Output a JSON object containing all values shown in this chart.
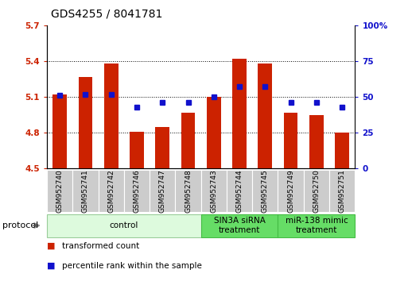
{
  "title": "GDS4255 / 8041781",
  "categories": [
    "GSM952740",
    "GSM952741",
    "GSM952742",
    "GSM952746",
    "GSM952747",
    "GSM952748",
    "GSM952743",
    "GSM952744",
    "GSM952745",
    "GSM952749",
    "GSM952750",
    "GSM952751"
  ],
  "bar_values": [
    5.12,
    5.27,
    5.38,
    4.81,
    4.85,
    4.97,
    5.1,
    5.42,
    5.38,
    4.97,
    4.95,
    4.8
  ],
  "percentile_values": [
    51,
    52,
    52,
    43,
    46,
    46,
    50,
    57,
    57,
    46,
    46,
    43
  ],
  "bar_color": "#cc2200",
  "percentile_color": "#1111cc",
  "ylim_left": [
    4.5,
    5.7
  ],
  "ylim_right": [
    0,
    100
  ],
  "yticks_left": [
    4.5,
    4.8,
    5.1,
    5.4,
    5.7
  ],
  "ytick_labels_left": [
    "4.5",
    "4.8",
    "5.1",
    "5.4",
    "5.7"
  ],
  "yticks_right": [
    0,
    25,
    50,
    75,
    100
  ],
  "ytick_labels_right": [
    "0",
    "25",
    "50",
    "75",
    "100%"
  ],
  "grid_lines": [
    4.8,
    5.1,
    5.4
  ],
  "bar_width": 0.55,
  "bar_bottom": 4.5,
  "groups": [
    {
      "label": "control",
      "start": 0,
      "end": 6,
      "color": "#ddfadd",
      "border": "#99cc99"
    },
    {
      "label": "SIN3A siRNA\ntreatment",
      "start": 6,
      "end": 9,
      "color": "#66dd66",
      "border": "#44bb44"
    },
    {
      "label": "miR-138 mimic\ntreatment",
      "start": 9,
      "end": 12,
      "color": "#66dd66",
      "border": "#44bb44"
    }
  ],
  "legend_items": [
    {
      "label": "transformed count",
      "color": "#cc2200"
    },
    {
      "label": "percentile rank within the sample",
      "color": "#1111cc"
    }
  ],
  "protocol_label": "protocol",
  "background_color": "#ffffff",
  "title_fontsize": 10,
  "tick_fontsize": 7.5,
  "label_fontsize": 8
}
